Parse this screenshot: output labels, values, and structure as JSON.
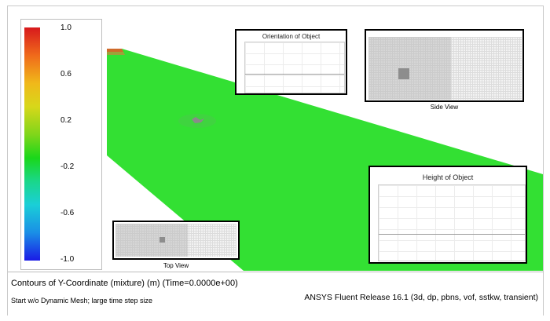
{
  "legend": {
    "ticks": [
      "1.0",
      "0.6",
      "0.2",
      "-0.2",
      "-0.6",
      "-1.0"
    ],
    "colors": {
      "top": "#d7191c",
      "mid": "#1ad71a",
      "bottom": "#1a1ae6"
    }
  },
  "insets": {
    "orientation": {
      "title": "Orientation of Object"
    },
    "side_view": {
      "caption": "Side View"
    },
    "height": {
      "title": "Height of Object"
    },
    "top_view": {
      "caption": "Top View"
    }
  },
  "status": {
    "contour_title": "Contours of Y-Coordinate (mixture)  (m)  (Time=0.0000e+00)",
    "subtitle": "Start w/o Dynamic Mesh; large time step size",
    "release": "ANSYS Fluent Release 16.1 (3d, dp, pbns, vof, sstkw, transient)"
  },
  "surface_color": "#33e033"
}
